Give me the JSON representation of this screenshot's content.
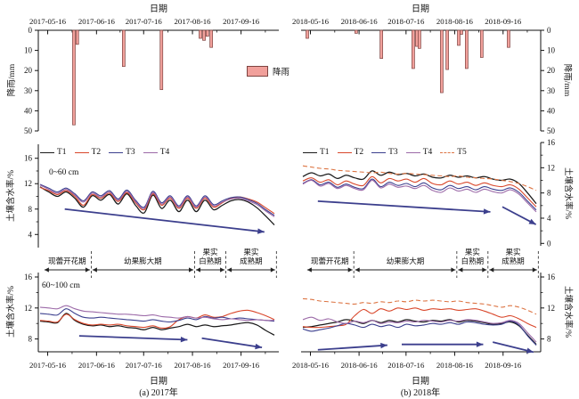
{
  "page": {
    "top_axis_title": "日期",
    "bottom_axis_title": "日期",
    "captions": {
      "a": "(a) 2017年",
      "b": "(b) 2018年"
    },
    "rain_ylabel": "降雨/mm",
    "soil_ylabel": "土壤含水率/%",
    "rain_legend_label": "降雨",
    "depth_labels": {
      "top": "0~60 cm",
      "bottom": "60~100 cm"
    }
  },
  "colors": {
    "T1": "#1a1a1a",
    "T2": "#d9472b",
    "T3": "#3b3f8e",
    "T4": "#9c6aa8",
    "T5": "#dd7544",
    "bar_fill": "#f1a09b",
    "bar_stroke": "#7e4340",
    "arrow": "#3c3f8d",
    "axis": "#111111",
    "stage": "#222222"
  },
  "stages": {
    "labels": [
      [
        "现蕾开花期"
      ],
      [
        "幼果膨大期"
      ],
      [
        "果实",
        "白熟期"
      ],
      [
        "果实",
        "成熟期"
      ]
    ],
    "boundaries": [
      0.02,
      0.22,
      0.65,
      0.78,
      0.99
    ]
  },
  "chart_data": [
    {
      "id": "rain-2017",
      "type": "bar",
      "title": "日期",
      "ylabel": "降雨/mm",
      "ylim": [
        0,
        50
      ],
      "y_inverted": true,
      "yticks": [
        0,
        10,
        20,
        30,
        40,
        50
      ],
      "x_tick_labels": [
        "2017-05-16",
        "2017-06-16",
        "2017-07-16",
        "2017-08-16",
        "2017-09-16"
      ],
      "x_tick_pos": [
        0.039,
        0.242,
        0.438,
        0.641,
        0.843
      ],
      "legend": "降雨",
      "bars": [
        [
          0.148,
          47
        ],
        [
          0.162,
          7
        ],
        [
          0.355,
          18
        ],
        [
          0.512,
          29.5
        ],
        [
          0.674,
          4
        ],
        [
          0.689,
          5
        ],
        [
          0.703,
          3
        ],
        [
          0.719,
          8.5
        ]
      ]
    },
    {
      "id": "rain-2018",
      "type": "bar",
      "title": "日期",
      "ylabel": "降雨/mm",
      "ylim": [
        0,
        50
      ],
      "y_inverted": true,
      "yticks": [
        0,
        10,
        20,
        30,
        40,
        50
      ],
      "x_tick_labels": [
        "2018-05-16",
        "2018-06-16",
        "2018-07-16",
        "2018-08-16",
        "2018-09-16"
      ],
      "x_tick_pos": [
        0.039,
        0.242,
        0.438,
        0.641,
        0.843
      ],
      "bars": [
        [
          0.026,
          4
        ],
        [
          0.23,
          1.5
        ],
        [
          0.335,
          14
        ],
        [
          0.468,
          19
        ],
        [
          0.483,
          8
        ],
        [
          0.494,
          9
        ],
        [
          0.587,
          31
        ],
        [
          0.61,
          19.5
        ],
        [
          0.658,
          7.5
        ],
        [
          0.669,
          2
        ],
        [
          0.691,
          19
        ],
        [
          0.754,
          13.5
        ],
        [
          0.866,
          8.5
        ]
      ]
    },
    {
      "id": "soil-2017-0-60",
      "type": "line",
      "depth_label": "0~60 cm",
      "ylabel": "土壤含水率/%",
      "ylim": [
        2,
        18
      ],
      "yticks": [
        4,
        8,
        12,
        16
      ],
      "yticks_minor": [
        6,
        10,
        14
      ],
      "series": [
        {
          "name": "T1",
          "values": [
            11.5,
            10.7,
            10.0,
            10.7,
            9.7,
            8.3,
            10.1,
            9.4,
            10.3,
            8.8,
            10.4,
            8.6,
            7.4,
            10.2,
            8.1,
            9.4,
            7.6,
            9.4,
            7.6,
            9.4,
            7.9,
            8.6,
            9.3,
            9.5,
            9.1,
            8.2,
            6.9,
            5.5
          ]
        },
        {
          "name": "T2",
          "values": [
            11.4,
            10.9,
            10.3,
            10.9,
            10.0,
            8.6,
            10.3,
            9.7,
            10.5,
            9.2,
            10.6,
            9.0,
            7.9,
            10.4,
            8.6,
            9.7,
            8.1,
            9.7,
            8.1,
            9.7,
            8.3,
            9.0,
            9.7,
            9.9,
            9.6,
            9.1,
            8.2,
            7.3
          ]
        },
        {
          "name": "T3",
          "values": [
            11.9,
            11.3,
            10.7,
            11.3,
            10.4,
            9.3,
            10.7,
            10.1,
            10.9,
            9.6,
            11.0,
            9.4,
            8.3,
            10.8,
            9.0,
            10.1,
            8.5,
            10.1,
            8.5,
            10.1,
            8.7,
            9.3,
            9.8,
            9.9,
            9.5,
            8.9,
            7.9,
            7.0
          ]
        },
        {
          "name": "T4",
          "values": [
            11.8,
            11.1,
            10.5,
            11.1,
            10.2,
            9.1,
            10.5,
            9.9,
            10.7,
            9.4,
            10.8,
            9.2,
            8.1,
            10.6,
            8.8,
            9.9,
            8.3,
            9.9,
            8.3,
            9.9,
            8.5,
            9.1,
            9.6,
            9.7,
            9.3,
            8.7,
            7.7,
            6.8
          ]
        }
      ],
      "arrows": [
        [
          0.11,
          8.0,
          0.94,
          4.4
        ]
      ]
    },
    {
      "id": "soil-2018-0-60",
      "type": "line",
      "ylabel": "土壤含水率/%",
      "ylim": [
        0,
        16.5
      ],
      "yticks": [
        0,
        4,
        8,
        12,
        16
      ],
      "yticks_minor": [
        2,
        6,
        10,
        14
      ],
      "series": [
        {
          "name": "T1",
          "values": [
            10.6,
            11.2,
            10.7,
            11.0,
            10.3,
            10.8,
            10.4,
            10.2,
            11.5,
            10.8,
            11.3,
            10.9,
            11.1,
            10.7,
            11.0,
            10.5,
            10.4,
            10.8,
            10.5,
            10.7,
            10.4,
            10.6,
            10.2,
            10.0,
            10.2,
            9.5,
            8.0,
            6.3
          ]
        },
        {
          "name": "T2",
          "values": [
            9.9,
            10.4,
            9.7,
            10.1,
            9.3,
            9.9,
            9.4,
            9.2,
            10.6,
            9.6,
            10.3,
            9.9,
            10.2,
            9.7,
            10.3,
            9.5,
            9.3,
            9.9,
            9.4,
            9.7,
            9.2,
            9.6,
            9.2,
            9.0,
            9.3,
            8.6,
            7.2,
            5.8
          ]
        },
        {
          "name": "T3",
          "values": [
            9.5,
            10.1,
            9.3,
            9.7,
            8.9,
            9.4,
            8.9,
            8.7,
            10.2,
            9.0,
            9.7,
            9.2,
            9.5,
            9.0,
            9.6,
            8.8,
            8.5,
            9.2,
            8.7,
            9.0,
            8.5,
            9.0,
            8.6,
            8.4,
            8.8,
            8.1,
            6.7,
            5.3
          ]
        },
        {
          "name": "T4",
          "values": [
            9.4,
            10.0,
            9.1,
            9.5,
            8.7,
            9.2,
            8.7,
            8.5,
            10.0,
            8.8,
            9.4,
            8.9,
            9.1,
            8.7,
            9.2,
            8.4,
            8.1,
            8.8,
            8.3,
            8.6,
            8.1,
            8.6,
            8.2,
            8.0,
            8.5,
            7.8,
            6.4,
            5.0
          ]
        },
        {
          "name": "T5",
          "dashed": true,
          "values": [
            12.3,
            12.1,
            11.9,
            11.8,
            11.6,
            11.5,
            11.4,
            11.3,
            11.2,
            11.3,
            11.1,
            11.0,
            11.1,
            11.0,
            10.9,
            10.8,
            10.7,
            10.6,
            10.7,
            10.5,
            10.4,
            10.3,
            10.2,
            10.0,
            9.8,
            9.5,
            9.0,
            8.4
          ]
        }
      ],
      "arrows": [
        [
          0.07,
          6.7,
          0.79,
          5.0
        ],
        [
          0.84,
          5.8,
          0.98,
          3.0
        ]
      ]
    },
    {
      "id": "soil-2017-60-100",
      "type": "line",
      "depth_label": "60~100 cm",
      "ylabel": "土壤含水率/%",
      "ylim": [
        6,
        16.6
      ],
      "yticks": [
        8,
        12,
        16
      ],
      "yticks_minor": [
        10,
        14
      ],
      "xlabel": "日期",
      "caption": "(a) 2017年",
      "x_tick_labels": [
        "2017-05-16",
        "2017-06-16",
        "2017-07-16",
        "2017-08-16",
        "2017-09-16"
      ],
      "x_tick_pos": [
        0.039,
        0.242,
        0.438,
        0.641,
        0.843
      ],
      "series": [
        {
          "name": "T1",
          "values": [
            10.3,
            10.2,
            10.1,
            11.3,
            10.4,
            9.9,
            9.7,
            9.8,
            9.6,
            9.7,
            9.5,
            9.4,
            9.2,
            9.5,
            9.2,
            9.4,
            9.6,
            9.9,
            9.6,
            9.8,
            9.6,
            9.7,
            9.8,
            10.0,
            10.1,
            9.8,
            9.1,
            8.5
          ]
        },
        {
          "name": "T2",
          "values": [
            10.4,
            10.3,
            10.2,
            11.2,
            10.5,
            10.0,
            9.8,
            9.9,
            9.8,
            9.9,
            9.7,
            9.6,
            9.5,
            9.7,
            9.4,
            9.6,
            10.5,
            10.9,
            10.7,
            11.1,
            10.8,
            10.9,
            11.3,
            11.6,
            11.7,
            11.4,
            11.0,
            10.5
          ]
        },
        {
          "name": "T3",
          "values": [
            11.3,
            11.2,
            11.1,
            11.9,
            11.3,
            10.8,
            10.7,
            10.8,
            10.7,
            10.6,
            10.5,
            10.4,
            10.3,
            10.5,
            10.3,
            10.2,
            10.4,
            10.7,
            10.5,
            10.9,
            10.7,
            10.8,
            10.6,
            10.7,
            10.6,
            10.5,
            10.4,
            10.3
          ]
        },
        {
          "name": "T4",
          "values": [
            12.1,
            12.0,
            11.9,
            12.3,
            11.9,
            11.6,
            11.5,
            11.4,
            11.3,
            11.2,
            11.2,
            11.1,
            11.0,
            11.1,
            10.9,
            10.8,
            10.7,
            10.9,
            10.7,
            10.8,
            10.6,
            10.5,
            10.6,
            10.5,
            10.4,
            10.5,
            10.4,
            10.4
          ]
        }
      ],
      "arrows": [
        [
          0.17,
          8.4,
          0.62,
          7.9
        ],
        [
          0.68,
          8.1,
          0.93,
          6.9
        ]
      ]
    },
    {
      "id": "soil-2018-60-100",
      "type": "line",
      "ylabel": "土壤含水率/%",
      "ylim": [
        6,
        16.6
      ],
      "yticks": [
        8,
        12,
        16
      ],
      "yticks_minor": [
        10,
        14
      ],
      "xlabel": "日期",
      "caption": "(b) 2018年",
      "x_tick_labels": [
        "2018-05-16",
        "2018-06-16",
        "2018-07-16",
        "2018-08-16",
        "2018-09-16"
      ],
      "x_tick_pos": [
        0.039,
        0.242,
        0.438,
        0.641,
        0.843
      ],
      "series": [
        {
          "name": "T1",
          "values": [
            9.5,
            9.6,
            9.8,
            10.0,
            10.2,
            10.5,
            10.3,
            10.0,
            10.4,
            10.1,
            10.4,
            10.2,
            10.5,
            10.3,
            10.2,
            10.4,
            10.3,
            10.5,
            10.2,
            10.4,
            10.3,
            10.1,
            9.9,
            10.0,
            10.2,
            9.7,
            8.5,
            7.3
          ]
        },
        {
          "name": "T2",
          "values": [
            9.6,
            9.5,
            9.5,
            9.6,
            9.7,
            9.9,
            11.0,
            11.8,
            11.3,
            11.9,
            11.6,
            12.0,
            11.8,
            12.0,
            11.7,
            11.9,
            11.8,
            11.9,
            11.7,
            11.8,
            11.9,
            11.6,
            11.2,
            10.8,
            11.0,
            10.6,
            10.0,
            9.5
          ]
        },
        {
          "name": "T3",
          "values": [
            9.3,
            9.0,
            9.2,
            9.4,
            9.7,
            10.0,
            9.8,
            9.5,
            9.9,
            9.6,
            9.8,
            9.5,
            9.9,
            9.7,
            9.8,
            10.0,
            9.9,
            10.1,
            9.9,
            10.2,
            10.1,
            9.9,
            9.8,
            9.9,
            10.3,
            9.8,
            8.4,
            7.2
          ]
        },
        {
          "name": "T4",
          "values": [
            10.5,
            10.8,
            10.4,
            10.6,
            10.2,
            10.0,
            10.3,
            10.1,
            10.4,
            10.0,
            10.2,
            10.1,
            10.3,
            10.2,
            10.4,
            10.3,
            10.2,
            10.4,
            10.3,
            10.5,
            10.4,
            10.2,
            10.0,
            10.1,
            10.4,
            10.0,
            8.8,
            7.6
          ]
        },
        {
          "name": "T5",
          "dashed": true,
          "values": [
            13.2,
            13.1,
            12.9,
            12.8,
            12.7,
            12.6,
            12.5,
            12.7,
            12.6,
            12.8,
            12.7,
            12.9,
            12.8,
            13.0,
            12.9,
            13.0,
            12.9,
            12.8,
            12.9,
            12.7,
            12.6,
            12.5,
            12.3,
            12.1,
            12.3,
            12.1,
            11.7,
            11.2
          ]
        }
      ],
      "arrows": [
        [
          0.07,
          6.6,
          0.36,
          7.2
        ],
        [
          0.42,
          7.3,
          0.76,
          7.3
        ],
        [
          0.8,
          7.6,
          0.97,
          6.3
        ]
      ]
    }
  ]
}
